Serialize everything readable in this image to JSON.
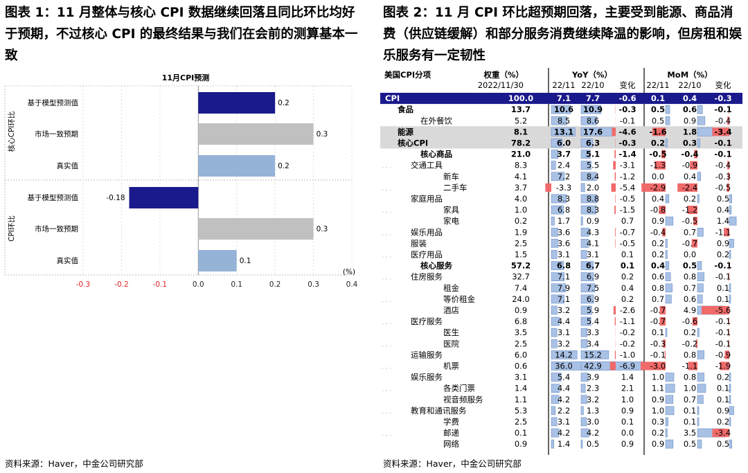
{
  "left": {
    "title": "图表 1：11 月整体与核心 CPI 数据继续回落且同比环比均好于预期，不过核心 CPI 的最终结果与我们在会前的测算基本一致",
    "source": "资料来源：Haver，中金公司研究部"
  },
  "right": {
    "title": "图表 2：11 月 CPI 环比超预期回落，主要受到能源、商品消费（供应链缓解）和部分服务消费继续降温的影响，但房租和娱乐服务有一定韧性",
    "source": "资料来源：Haver，中金公司研究部"
  },
  "colors": {
    "navy": "#1a1a8c",
    "grey": "#c0c0c0",
    "light_blue": "#95b3d7",
    "neg_tick": "#e02020",
    "band": "#d9d9d9",
    "header": "#1a1a8c",
    "bar_blue": "#a8c1e5",
    "bar_red": "#f06a6a"
  },
  "chart_data": [
    {
      "type": "bar",
      "orientation": "horizontal",
      "title": "11月CPI预测",
      "xlabel": "(%)",
      "xlim": [
        -0.3,
        0.4
      ],
      "xticks": [
        "-0.3",
        "-0.2",
        "-0.1",
        "0.0",
        "0.1",
        "0.2",
        "0.3",
        "0.4"
      ],
      "groups": [
        {
          "name": "核心CPI环比",
          "categories": [
            "基于模型预测值",
            "市场一致预期",
            "真实值"
          ],
          "values": [
            0.2,
            0.3,
            0.2
          ],
          "labels": [
            "0.2",
            "0.3",
            "0.2"
          ],
          "colors": [
            "navy",
            "grey",
            "light_blue"
          ]
        },
        {
          "name": "CPI环比",
          "categories": [
            "基于模型预测值",
            "市场一致预期",
            "真实值"
          ],
          "values": [
            -0.18,
            0.3,
            0.1
          ],
          "labels": [
            "-0.18",
            "0.3",
            "0.1"
          ],
          "colors": [
            "navy",
            "grey",
            "light_blue"
          ]
        }
      ]
    },
    {
      "type": "table",
      "header": {
        "c0": "美国CPI分项",
        "c1": "权重（%）",
        "c1b": "2022/11/30",
        "yoy": "YoY（%）",
        "mom": "MoM（%）",
        "p1": "22/11",
        "p2": "22/10",
        "chg": "变化"
      },
      "columns": [
        "name",
        "weight",
        "yoy_2211",
        "yoy_2210",
        "yoy_change",
        "mom_2211",
        "mom_2210",
        "mom_change"
      ],
      "rows": [
        {
          "name": "CPI",
          "level": 0,
          "style": "header",
          "v": [
            "100.0",
            "7.1",
            "7.7",
            "-0.6",
            "0.1",
            "0.4",
            "-0.3"
          ]
        },
        {
          "name": "食品",
          "level": 1,
          "style": "bold",
          "v": [
            "13.7",
            "10.6",
            "10.9",
            "-0.3",
            "0.5",
            "0.6",
            "-0.1"
          ]
        },
        {
          "name": "在外餐饮",
          "level": 2,
          "style": "normal",
          "v": [
            "5.2",
            "8.5",
            "8.6",
            "-0.1",
            "0.5",
            "0.9",
            "-0.4"
          ]
        },
        {
          "name": "能源",
          "level": 1,
          "style": "band",
          "v": [
            "8.1",
            "13.1",
            "17.6",
            "-4.6",
            "-1.6",
            "1.8",
            "-3.4"
          ]
        },
        {
          "name": "核心CPI",
          "level": 1,
          "style": "band",
          "v": [
            "78.2",
            "6.0",
            "6.3",
            "-0.3",
            "0.2",
            "0.3",
            "-0.1"
          ]
        },
        {
          "name": "核心商品",
          "level": 2,
          "style": "bold",
          "v": [
            "21.0",
            "3.7",
            "5.1",
            "-1.4",
            "-0.5",
            "-0.4",
            "-0.1"
          ]
        },
        {
          "name": "交通工具",
          "level": 3,
          "style": "normal",
          "v": [
            "8.3",
            "2.4",
            "5.5",
            "-3.1",
            "-1.3",
            "-0.9",
            "-0.4"
          ]
        },
        {
          "name": "新车",
          "level": 4,
          "style": "normal",
          "v": [
            "4.1",
            "7.2",
            "8.4",
            "-1.2",
            "0.0",
            "0.4",
            "-0.3"
          ]
        },
        {
          "name": "二手车",
          "level": 4,
          "style": "normal",
          "v": [
            "3.7",
            "-3.3",
            "2.0",
            "-5.4",
            "-2.9",
            "-2.4",
            "-0.5"
          ]
        },
        {
          "name": "家庭用品",
          "level": 3,
          "style": "normal",
          "v": [
            "4.0",
            "8.3",
            "8.8",
            "-0.5",
            "0.4",
            "0.2",
            "0.5"
          ]
        },
        {
          "name": "家具",
          "level": 4,
          "style": "normal",
          "v": [
            "1.0",
            "6.8",
            "8.3",
            "-1.5",
            "-0.8",
            "-1.2",
            "0.4"
          ]
        },
        {
          "name": "家电",
          "level": 4,
          "style": "normal",
          "v": [
            "0.2",
            "1.7",
            "0.9",
            "0.7",
            "0.9",
            "-0.5",
            "1.4"
          ]
        },
        {
          "name": "娱乐用品",
          "level": 3,
          "style": "normal",
          "v": [
            "1.9",
            "3.6",
            "4.3",
            "-0.7",
            "-0.4",
            "0.7",
            "-1.1"
          ]
        },
        {
          "name": "服装",
          "level": 3,
          "style": "normal",
          "v": [
            "2.5",
            "3.6",
            "4.1",
            "-0.5",
            "0.2",
            "-0.7",
            "0.9"
          ]
        },
        {
          "name": "医疗用品",
          "level": 3,
          "style": "normal",
          "v": [
            "1.5",
            "3.1",
            "3.1",
            "0.1",
            "0.2",
            "0.0",
            "0.2"
          ]
        },
        {
          "name": "核心服务",
          "level": 2,
          "style": "bold",
          "v": [
            "57.2",
            "6.8",
            "6.7",
            "0.1",
            "0.4",
            "0.5",
            "-0.1"
          ]
        },
        {
          "name": "住房服务",
          "level": 3,
          "style": "normal",
          "v": [
            "32.7",
            "7.1",
            "6.9",
            "0.2",
            "0.6",
            "0.8",
            "-0.1"
          ]
        },
        {
          "name": "租金",
          "level": 4,
          "style": "normal",
          "v": [
            "7.4",
            "7.9",
            "7.5",
            "0.4",
            "0.8",
            "0.7",
            "0.1"
          ]
        },
        {
          "name": "等价租金",
          "level": 4,
          "style": "normal",
          "v": [
            "24.0",
            "7.1",
            "6.9",
            "0.2",
            "0.7",
            "0.6",
            "0.1"
          ]
        },
        {
          "name": "酒店",
          "level": 4,
          "style": "normal",
          "v": [
            "0.9",
            "3.2",
            "5.9",
            "-2.6",
            "-0.7",
            "4.9",
            "-5.6"
          ]
        },
        {
          "name": "医疗服务",
          "level": 3,
          "style": "normal",
          "v": [
            "6.8",
            "4.4",
            "5.4",
            "-1.1",
            "-0.7",
            "-0.6",
            "-0.1"
          ]
        },
        {
          "name": "医生",
          "level": 4,
          "style": "normal",
          "v": [
            "3.5",
            "3.1",
            "3.3",
            "-0.2",
            "0.1",
            "0.2",
            "-0.1"
          ]
        },
        {
          "name": "医院",
          "level": 4,
          "style": "normal",
          "v": [
            "2.5",
            "3.2",
            "3.4",
            "-0.2",
            "-0.3",
            "-0.2",
            "-0.1"
          ]
        },
        {
          "name": "运输服务",
          "level": 3,
          "style": "normal",
          "v": [
            "6.0",
            "14.2",
            "15.2",
            "-1.0",
            "-0.1",
            "0.8",
            "-0.9"
          ]
        },
        {
          "name": "机票",
          "level": 4,
          "style": "normal",
          "v": [
            "0.6",
            "36.0",
            "42.9",
            "-6.9",
            "-3.0",
            "-1.1",
            "-1.9"
          ]
        },
        {
          "name": "娱乐服务",
          "level": 3,
          "style": "normal",
          "v": [
            "3.1",
            "5.4",
            "3.9",
            "1.4",
            "1.0",
            "0.8",
            "0.2"
          ]
        },
        {
          "name": "各类门票",
          "level": 4,
          "style": "normal",
          "v": [
            "1.4",
            "4.4",
            "2.3",
            "2.1",
            "1.1",
            "1.0",
            "0.1"
          ]
        },
        {
          "name": "视音频服务",
          "level": 4,
          "style": "normal",
          "v": [
            "1.1",
            "4.2",
            "3.2",
            "1.0",
            "0.9",
            "0.7",
            "0.1"
          ]
        },
        {
          "name": "教育和通讯服务",
          "level": 3,
          "style": "normal",
          "v": [
            "5.3",
            "2.2",
            "1.3",
            "0.9",
            "1.0",
            "0.1",
            "0.9"
          ]
        },
        {
          "name": "学费",
          "level": 4,
          "style": "normal",
          "v": [
            "2.5",
            "3.1",
            "3.0",
            "0.1",
            "0.3",
            "0.1",
            "0.2"
          ]
        },
        {
          "name": "邮递",
          "level": 4,
          "style": "normal",
          "v": [
            "0.1",
            "4.2",
            "4.2",
            "0.0",
            "0.2",
            "3.5",
            "-3.4"
          ]
        },
        {
          "name": "网络",
          "level": 4,
          "style": "normal",
          "v": [
            "0.9",
            "1.4",
            "0.5",
            "0.9",
            "0.9",
            "0.5",
            "0.5"
          ]
        }
      ]
    }
  ]
}
